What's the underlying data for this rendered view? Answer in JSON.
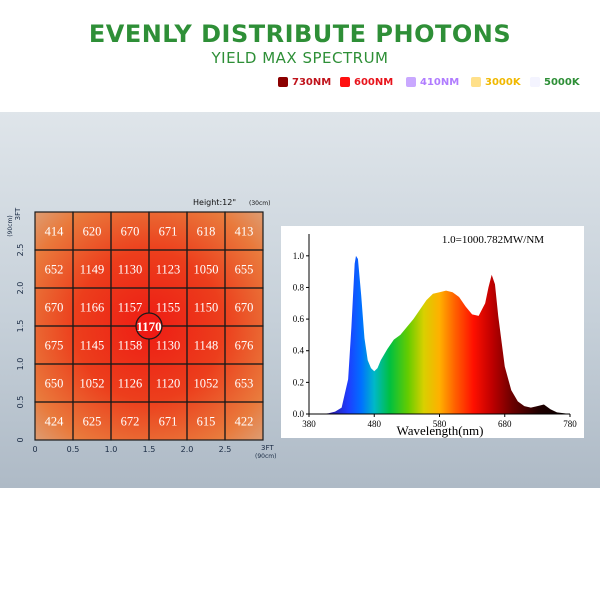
{
  "title": "EVENLY DISTRIBUTE PHOTONS",
  "subtitle": "YIELD MAX SPECTRUM",
  "legend": [
    {
      "label": "730NM",
      "color": "#8b0000",
      "text_color": "#c0141c"
    },
    {
      "label": "600NM",
      "color": "#ff1010",
      "text_color": "#e8141c"
    },
    {
      "label": "410NM",
      "color": "#c9a8ff",
      "text_color": "#b07cff"
    },
    {
      "label": "3000K",
      "color": "#ffe08a",
      "text_color": "#f0b800"
    },
    {
      "label": "5000K",
      "color": "#f4f4ff",
      "text_color": "#2e8f37"
    }
  ],
  "chart_data": [
    {
      "type": "heatmap",
      "height_label": "Height:12\"",
      "height_label_unit": "(30cm)",
      "values": [
        [
          414,
          620,
          670,
          671,
          618,
          413
        ],
        [
          652,
          1149,
          1130,
          1123,
          1050,
          655
        ],
        [
          670,
          1166,
          1157,
          1155,
          1150,
          670
        ],
        [
          675,
          1145,
          1158,
          1130,
          1148,
          676
        ],
        [
          650,
          1052,
          1126,
          1120,
          1052,
          653
        ],
        [
          424,
          625,
          672,
          671,
          615,
          422
        ]
      ],
      "center_value": 1170,
      "x_ticks": [
        "0",
        "0.5",
        "1.0",
        "1.5",
        "2.0",
        "2.5"
      ],
      "x_end_label": "3FT",
      "x_end_unit": "(90cm)",
      "y_ticks": [
        "0",
        "0.5",
        "1.0",
        "1.5",
        "2.0",
        "2.5"
      ],
      "y_end_label": "3FT",
      "y_end_unit": "(90cm)",
      "xlim": [
        0,
        3
      ],
      "ylim": [
        0,
        3
      ]
    },
    {
      "type": "area",
      "annotation": "1.0=1000.782MW/NM",
      "xlabel": "Wavelength(nm)",
      "x_ticks": [
        "380",
        "480",
        "580",
        "680",
        "780"
      ],
      "y_ticks": [
        "0.0",
        "0.2",
        "0.4",
        "0.6",
        "0.8",
        "1.0"
      ],
      "xlim": [
        380,
        780
      ],
      "ylim": [
        0,
        1.1
      ],
      "x": [
        380,
        400,
        410,
        420,
        430,
        440,
        445,
        450,
        452,
        455,
        460,
        465,
        470,
        475,
        480,
        485,
        490,
        500,
        510,
        520,
        530,
        540,
        550,
        560,
        570,
        580,
        590,
        600,
        610,
        620,
        630,
        640,
        650,
        655,
        660,
        665,
        670,
        680,
        690,
        700,
        710,
        720,
        730,
        740,
        750,
        760,
        780
      ],
      "y": [
        0.0,
        0.0,
        0.005,
        0.015,
        0.04,
        0.22,
        0.55,
        0.95,
        1.0,
        0.98,
        0.75,
        0.48,
        0.34,
        0.29,
        0.27,
        0.29,
        0.34,
        0.41,
        0.47,
        0.5,
        0.55,
        0.6,
        0.66,
        0.72,
        0.76,
        0.77,
        0.78,
        0.77,
        0.74,
        0.68,
        0.63,
        0.62,
        0.7,
        0.8,
        0.88,
        0.82,
        0.62,
        0.3,
        0.15,
        0.08,
        0.05,
        0.04,
        0.05,
        0.06,
        0.03,
        0.01,
        0.0
      ]
    }
  ]
}
